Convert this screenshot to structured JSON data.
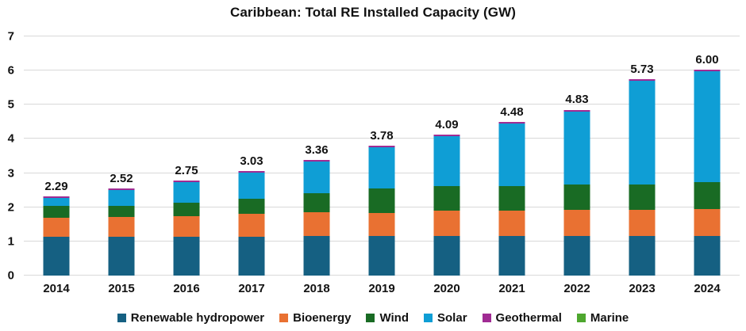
{
  "title": "Caribbean: Total RE Installed Capacity (GW)",
  "colors": {
    "grid": "#D9D9D9",
    "text": "#121212",
    "background": "#FFFFFF"
  },
  "chart_data": {
    "type": "bar",
    "stacked": true,
    "title": "Caribbean: Total RE Installed Capacity (GW)",
    "categories": [
      "2014",
      "2015",
      "2016",
      "2017",
      "2018",
      "2019",
      "2020",
      "2021",
      "2022",
      "2023",
      "2024"
    ],
    "series": [
      {
        "name": "Renewable hydropower",
        "color": "#156082",
        "values": [
          1.13,
          1.13,
          1.13,
          1.14,
          1.16,
          1.16,
          1.17,
          1.17,
          1.17,
          1.17,
          1.17
        ]
      },
      {
        "name": "Bioenergy",
        "color": "#E97132",
        "values": [
          0.57,
          0.59,
          0.6,
          0.67,
          0.7,
          0.68,
          0.74,
          0.74,
          0.75,
          0.75,
          0.77
        ]
      },
      {
        "name": "Wind",
        "color": "#196B24",
        "values": [
          0.33,
          0.33,
          0.41,
          0.44,
          0.55,
          0.72,
          0.71,
          0.71,
          0.74,
          0.74,
          0.8
        ]
      },
      {
        "name": "Solar",
        "color": "#0F9ED5",
        "values": [
          0.24,
          0.45,
          0.59,
          0.76,
          0.93,
          1.2,
          1.45,
          1.84,
          2.15,
          3.05,
          3.24
        ]
      },
      {
        "name": "Geothermal",
        "color": "#A02B93",
        "values": [
          0.02,
          0.02,
          0.02,
          0.02,
          0.02,
          0.02,
          0.02,
          0.02,
          0.02,
          0.02,
          0.02
        ]
      },
      {
        "name": "Marine",
        "color": "#4EA72E",
        "values": [
          0,
          0,
          0,
          0,
          0,
          0,
          0,
          0,
          0,
          0,
          0
        ]
      }
    ],
    "total_labels": [
      "2.29",
      "2.52",
      "2.75",
      "3.03",
      "3.36",
      "3.78",
      "4.09",
      "4.48",
      "4.83",
      "5.73",
      "6.00"
    ],
    "y_axis": {
      "min": 0,
      "max": 7,
      "tick_labels": [
        "0",
        "1",
        "2",
        "3",
        "4",
        "5",
        "6",
        "7"
      ]
    },
    "grid": true,
    "legend_position": "bottom"
  }
}
